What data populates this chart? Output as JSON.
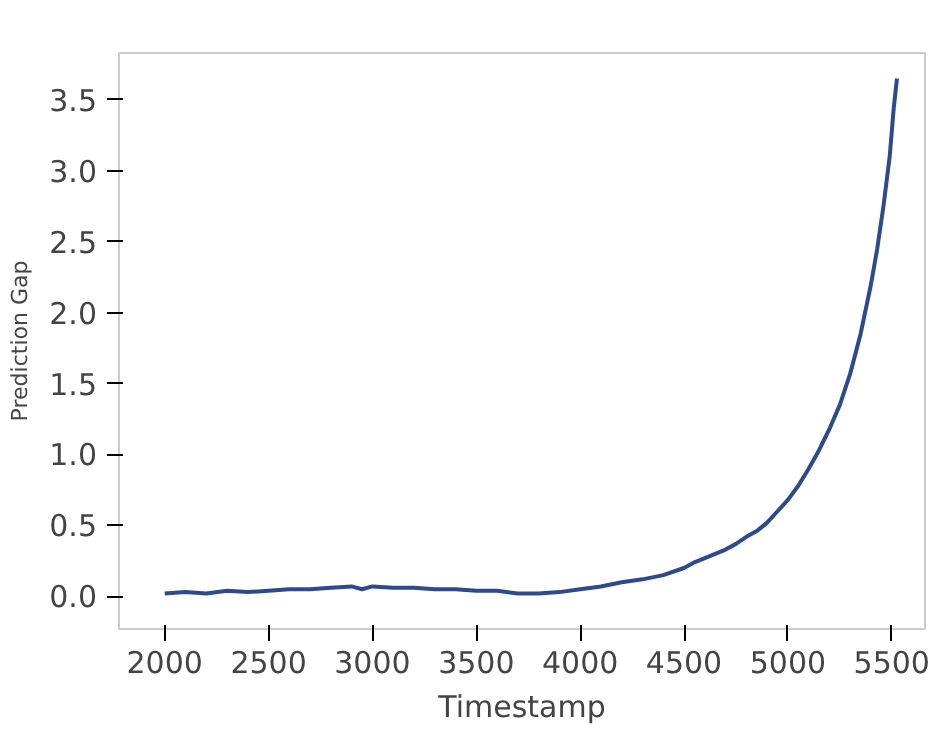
{
  "chart_data": {
    "type": "line",
    "xlabel": "Timestamp",
    "ylabel": "Prediction Gap",
    "x": [
      2000,
      2100,
      2200,
      2300,
      2400,
      2500,
      2600,
      2700,
      2800,
      2900,
      2950,
      3000,
      3100,
      3200,
      3300,
      3400,
      3500,
      3600,
      3700,
      3800,
      3900,
      4000,
      4100,
      4200,
      4300,
      4400,
      4500,
      4550,
      4600,
      4650,
      4700,
      4750,
      4800,
      4850,
      4900,
      4950,
      5000,
      5050,
      5100,
      5150,
      5200,
      5250,
      5300,
      5350,
      5400,
      5430,
      5460,
      5490,
      5510,
      5525
    ],
    "series": [
      {
        "color": "#2e4a8c",
        "values": [
          0.02,
          0.03,
          0.02,
          0.04,
          0.03,
          0.04,
          0.05,
          0.05,
          0.06,
          0.07,
          0.05,
          0.07,
          0.06,
          0.06,
          0.05,
          0.05,
          0.04,
          0.04,
          0.02,
          0.02,
          0.03,
          0.05,
          0.07,
          0.1,
          0.12,
          0.15,
          0.2,
          0.24,
          0.27,
          0.3,
          0.33,
          0.37,
          0.42,
          0.46,
          0.52,
          0.6,
          0.68,
          0.78,
          0.9,
          1.03,
          1.18,
          1.35,
          1.57,
          1.85,
          2.2,
          2.45,
          2.75,
          3.1,
          3.45,
          3.65
        ]
      }
    ],
    "xlim": [
      1780,
      5660
    ],
    "ylim": [
      -0.23,
      3.83
    ],
    "xticks": [
      2000,
      2500,
      3000,
      3500,
      4000,
      4500,
      5000,
      5500
    ],
    "yticks": [
      {
        "value": 0,
        "label": "0.0"
      },
      0.5,
      {
        "value": 1,
        "label": "1.0"
      },
      1.5,
      {
        "value": 2,
        "label": "2.0"
      },
      2.5,
      {
        "value": 3,
        "label": "3.0"
      },
      3.5
    ],
    "grid": false
  }
}
